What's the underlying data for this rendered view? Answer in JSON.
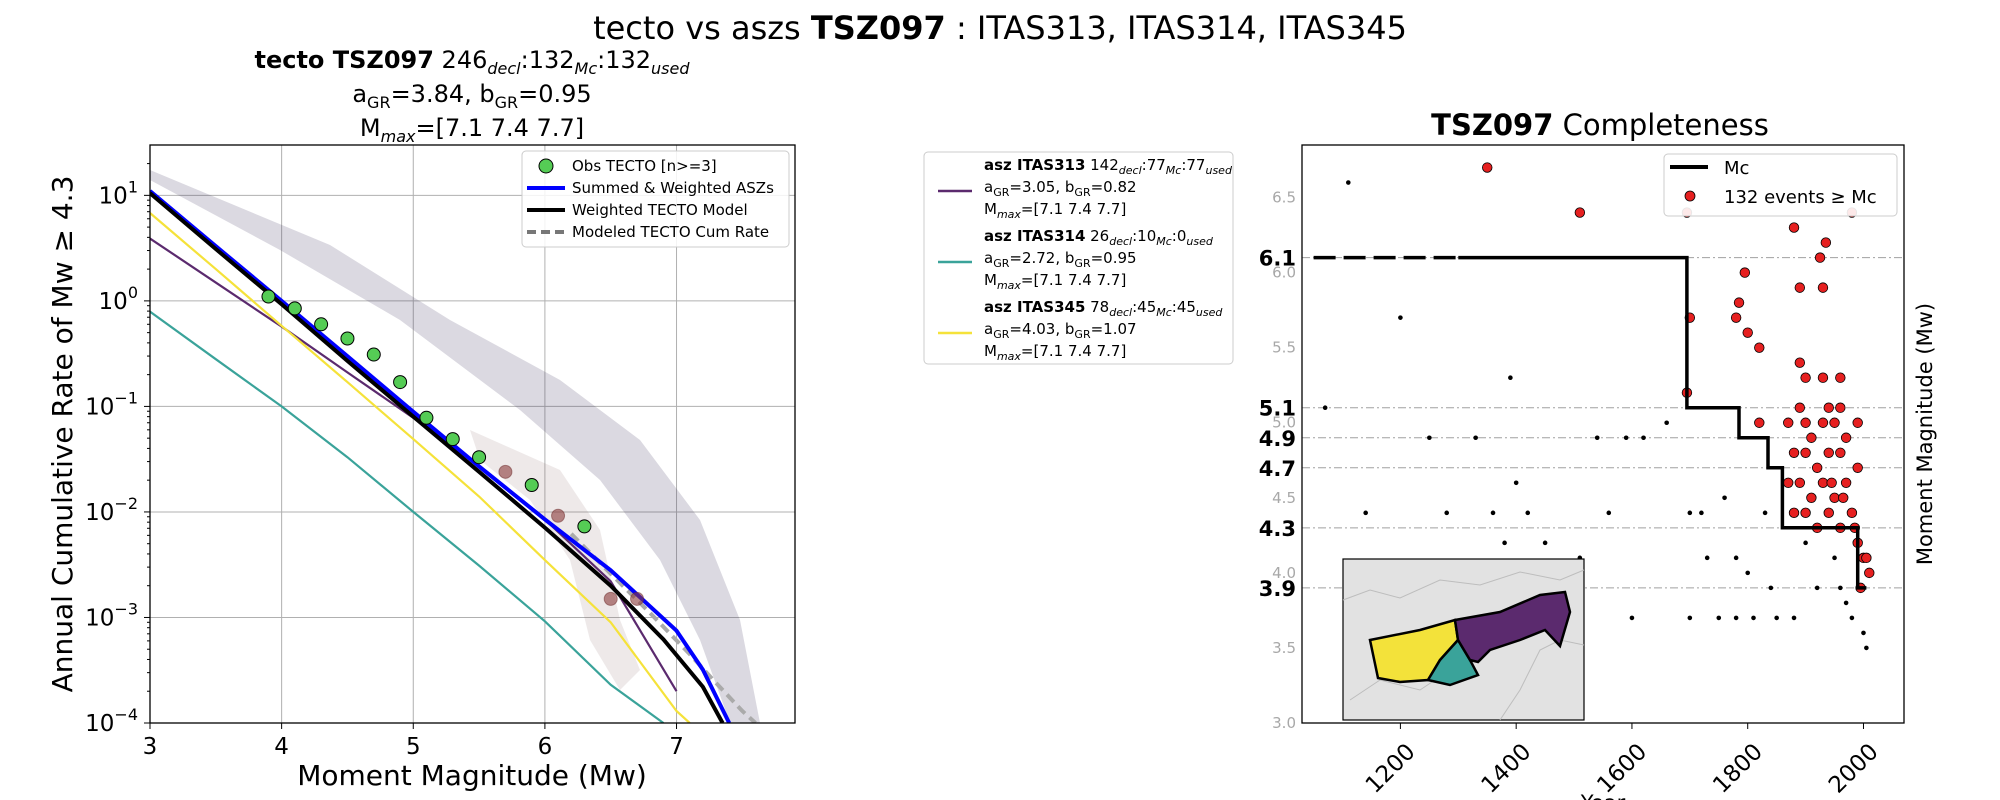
{
  "suptitle": {
    "pre": "tecto vs aszs ",
    "bold": "TSZ097",
    "post": " : ITAS313, ITAS314, ITAS345"
  },
  "left_title": {
    "line1_bold": "tecto TSZ097",
    "line1_rest": "  246",
    "decl_sub": "decl",
    "sep1": ":132",
    "mc_sub": "Mc",
    "sep2": ":132",
    "used_sub": "used",
    "a_label": "a",
    "gr_sub": "GR",
    "a_value": "=3.84,  ",
    "b_label": "b",
    "b_value": "=0.95",
    "m_label": "M",
    "max_sub": "max",
    "mmax_value": "=[7.1 7.4 7.7]"
  },
  "colors": {
    "obs": "#55cc55",
    "summed": "#0000ff",
    "weighted": "#000000",
    "modeled": "#777777",
    "itas313": "#5b2a6e",
    "itas314": "#3aa39a",
    "itas345": "#f5e23a",
    "red": "#e62020"
  },
  "chart_data": [
    {
      "type": "line",
      "xlabel": "Moment Magnitude (Mw)",
      "ylabel": "Annual Cumulative Rate of Mw ≥ 4.3",
      "xlim": [
        3,
        7.9
      ],
      "ylim": [
        0.0001,
        30
      ],
      "yscale": "log",
      "grid": true,
      "legend_position": "top-right",
      "xticks": [
        "3",
        "4",
        "5",
        "6",
        "7"
      ],
      "yticks": [
        {
          "base": "10",
          "exp": "1"
        },
        {
          "base": "10",
          "exp": "0"
        },
        {
          "base": "10",
          "exp": "−1"
        },
        {
          "base": "10",
          "exp": "−2"
        },
        {
          "base": "10",
          "exp": "−3"
        },
        {
          "base": "10",
          "exp": "−4"
        }
      ],
      "legend": [
        "Obs TECTO [n>=3]",
        "Summed & Weighted ASZs",
        "Weighted TECTO Model",
        "Modeled TECTO Cum Rate"
      ],
      "obs_points": [
        [
          3.9,
          1.1
        ],
        [
          4.1,
          0.85
        ],
        [
          4.3,
          0.6
        ],
        [
          4.5,
          0.44
        ],
        [
          4.7,
          0.31
        ],
        [
          4.9,
          0.17
        ],
        [
          5.1,
          0.078
        ],
        [
          5.3,
          0.049
        ],
        [
          5.5,
          0.033
        ],
        [
          5.9,
          0.018
        ],
        [
          6.3,
          0.0073
        ]
      ],
      "faded_points": [
        [
          5.7,
          0.024
        ],
        [
          6.1,
          0.0092
        ],
        [
          6.5,
          0.0015
        ],
        [
          6.7,
          0.0015
        ]
      ],
      "series": [
        {
          "name": "Summed & Weighted ASZs",
          "x": [
            3,
            3.5,
            4,
            4.5,
            5,
            5.5,
            6,
            6.5,
            7,
            7.2,
            7.4
          ],
          "y": [
            11,
            3.3,
            1.0,
            0.3,
            0.089,
            0.027,
            0.0085,
            0.0028,
            0.00075,
            0.00032,
            0.0001
          ]
        },
        {
          "name": "Weighted TECTO Model",
          "x": [
            3,
            3.5,
            4,
            4.5,
            5,
            5.5,
            6,
            6.5,
            6.9,
            7.2,
            7.35
          ],
          "y": [
            10.5,
            3.1,
            0.93,
            0.27,
            0.08,
            0.024,
            0.0071,
            0.002,
            0.00062,
            0.00022,
            0.0001
          ]
        },
        {
          "name": "Modeled TECTO Cum Rate",
          "x": [
            6.2,
            6.5,
            6.8,
            7.1,
            7.3,
            7.5,
            7.6
          ],
          "y": [
            0.0062,
            0.0026,
            0.0011,
            0.00045,
            0.00024,
            0.00013,
            0.0001
          ]
        },
        {
          "name": "ITAS313 model",
          "x": [
            3,
            3.5,
            4,
            4.5,
            5,
            5.5,
            6,
            6.5,
            7
          ],
          "y": [
            3.9,
            1.49,
            0.57,
            0.21,
            0.078,
            0.027,
            0.0085,
            0.0022,
            0.0002
          ]
        },
        {
          "name": "ITAS314 model",
          "x": [
            3,
            3.5,
            4,
            4.5,
            5,
            5.5,
            6,
            6.5,
            6.9
          ],
          "y": [
            0.79,
            0.28,
            0.1,
            0.033,
            0.01,
            0.0031,
            0.00092,
            0.00023,
            0.0001
          ]
        },
        {
          "name": "ITAS345 model",
          "x": [
            3,
            3.5,
            4,
            4.5,
            5,
            5.5,
            6,
            6.5,
            7,
            7.1
          ],
          "y": [
            6.8,
            2.0,
            0.58,
            0.17,
            0.049,
            0.014,
            0.0035,
            0.0009,
            0.00013,
            0.0001
          ]
        }
      ]
    },
    {
      "type": "scatter",
      "title_bold": "TSZ097",
      "title_rest": " Completeness",
      "xlabel": "Year",
      "ylabel": "Moment Magnitude (Mw)",
      "xlim": [
        1030,
        2070
      ],
      "ylim": [
        3.0,
        6.85
      ],
      "xticks": [
        "1200",
        "1400",
        "1600",
        "1800",
        "2000"
      ],
      "yticks": [
        "3.0",
        "3.5",
        "4.0",
        "4.5",
        "5.0",
        "5.5",
        "6.0",
        "6.5"
      ],
      "mc_levels": [
        "6.1",
        "5.1",
        "4.9",
        "4.7",
        "4.3",
        "3.9"
      ],
      "mc_step": [
        [
          1300,
          6.1
        ],
        [
          1695,
          6.1
        ],
        [
          1695,
          5.1
        ],
        [
          1785,
          5.1
        ],
        [
          1785,
          4.9
        ],
        [
          1835,
          4.9
        ],
        [
          1835,
          4.7
        ],
        [
          1860,
          4.7
        ],
        [
          1860,
          4.3
        ],
        [
          1990,
          4.3
        ],
        [
          1990,
          3.9
        ],
        [
          2005,
          3.9
        ]
      ],
      "mc_dashed": [
        [
          1050,
          6.1
        ],
        [
          1300,
          6.1
        ]
      ],
      "legend": [
        "Mc",
        "132 events ≥ Mc"
      ],
      "legend_position": "top-right",
      "red_events": [
        [
          1350,
          6.7
        ],
        [
          1510,
          6.4
        ],
        [
          1695,
          6.4
        ],
        [
          1980,
          6.4
        ],
        [
          1880,
          6.3
        ],
        [
          1935,
          6.2
        ],
        [
          1925,
          6.1
        ],
        [
          1700,
          5.7
        ],
        [
          1785,
          5.8
        ],
        [
          1795,
          6.0
        ],
        [
          1890,
          5.9
        ],
        [
          1930,
          5.9
        ],
        [
          1780,
          5.7
        ],
        [
          1800,
          5.6
        ],
        [
          1820,
          5.5
        ],
        [
          1890,
          5.4
        ],
        [
          1900,
          5.3
        ],
        [
          1930,
          5.3
        ],
        [
          1960,
          5.3
        ],
        [
          1890,
          5.1
        ],
        [
          1940,
          5.1
        ],
        [
          1960,
          5.1
        ],
        [
          1695,
          5.2
        ],
        [
          1820,
          5.0
        ],
        [
          1870,
          5.0
        ],
        [
          1900,
          5.0
        ],
        [
          1910,
          4.9
        ],
        [
          1930,
          5.0
        ],
        [
          1950,
          5.0
        ],
        [
          1970,
          4.9
        ],
        [
          1990,
          5.0
        ],
        [
          1880,
          4.8
        ],
        [
          1900,
          4.8
        ],
        [
          1920,
          4.7
        ],
        [
          1940,
          4.8
        ],
        [
          1960,
          4.8
        ],
        [
          1990,
          4.7
        ],
        [
          1870,
          4.6
        ],
        [
          1890,
          4.6
        ],
        [
          1910,
          4.5
        ],
        [
          1930,
          4.6
        ],
        [
          1950,
          4.5
        ],
        [
          1970,
          4.6
        ],
        [
          1880,
          4.4
        ],
        [
          1900,
          4.4
        ],
        [
          1920,
          4.3
        ],
        [
          1940,
          4.4
        ],
        [
          1960,
          4.3
        ],
        [
          1980,
          4.4
        ],
        [
          1990,
          4.2
        ],
        [
          2000,
          4.1
        ],
        [
          2010,
          4.0
        ],
        [
          1995,
          3.9
        ],
        [
          2005,
          4.1
        ],
        [
          1985,
          4.3
        ],
        [
          1965,
          4.5
        ],
        [
          1945,
          4.6
        ]
      ],
      "black_events": [
        [
          1070,
          5.1
        ],
        [
          1110,
          6.6
        ],
        [
          1200,
          5.7
        ],
        [
          1140,
          4.4
        ],
        [
          1250,
          4.9
        ],
        [
          1280,
          4.4
        ],
        [
          1390,
          5.3
        ],
        [
          1400,
          4.6
        ],
        [
          1380,
          4.2
        ],
        [
          1330,
          4.9
        ],
        [
          1360,
          4.4
        ],
        [
          1420,
          4.4
        ],
        [
          1450,
          4.2
        ],
        [
          1510,
          4.1
        ],
        [
          1540,
          4.9
        ],
        [
          1560,
          4.4
        ],
        [
          1590,
          4.9
        ],
        [
          1620,
          4.9
        ],
        [
          1660,
          5.0
        ],
        [
          1700,
          4.4
        ],
        [
          1720,
          4.4
        ],
        [
          1760,
          4.5
        ],
        [
          1780,
          4.1
        ],
        [
          1800,
          4.0
        ],
        [
          1830,
          4.4
        ],
        [
          1850,
          3.7
        ],
        [
          1900,
          4.2
        ],
        [
          1920,
          3.9
        ],
        [
          1950,
          4.1
        ],
        [
          1970,
          3.8
        ],
        [
          2000,
          3.6
        ],
        [
          2005,
          3.5
        ],
        [
          1980,
          3.7
        ],
        [
          1960,
          3.9
        ],
        [
          1700,
          3.7
        ],
        [
          1750,
          3.7
        ],
        [
          1780,
          3.7
        ],
        [
          1810,
          3.7
        ],
        [
          1840,
          3.9
        ],
        [
          1880,
          3.7
        ],
        [
          1600,
          3.7
        ],
        [
          1500,
          3.8
        ],
        [
          1730,
          4.1
        ],
        [
          1360,
          3.7
        ],
        [
          1440,
          3.9
        ]
      ]
    }
  ],
  "aszs": [
    {
      "bold": "asz ITAS313",
      "count": " 142",
      "decl": "decl",
      "sep1": ":77",
      "mc": "Mc",
      "sep2": ":77",
      "used": "used",
      "a": "=3.05,  ",
      "b": "=0.82",
      "mmax": "=[7.1 7.4 7.7]"
    },
    {
      "bold": "asz ITAS314",
      "count": " 26",
      "decl": "decl",
      "sep1": ":10",
      "mc": "Mc",
      "sep2": ":0",
      "used": "used",
      "a": "=2.72,  ",
      "b": "=0.95",
      "mmax": "=[7.1 7.4 7.7]"
    },
    {
      "bold": "asz ITAS345",
      "count": " 78",
      "decl": "decl",
      "sep1": ":45",
      "mc": "Mc",
      "sep2": ":45",
      "used": "used",
      "a": "=4.03,  ",
      "b": "=1.07",
      "mmax": "=[7.1 7.4 7.7]"
    }
  ],
  "asz_keys": [
    "itas313",
    "itas314",
    "itas345"
  ]
}
